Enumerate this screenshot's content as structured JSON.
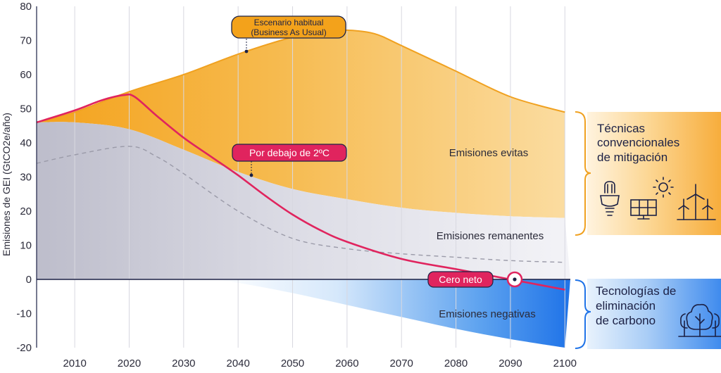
{
  "chart_data": {
    "type": "area",
    "ylabel": "Emisiones de GEI (GtCO2e/año)",
    "xlabel": "",
    "title": "",
    "xlim": [
      2003,
      2101
    ],
    "ylim": [
      -20,
      80
    ],
    "x_ticks": [
      2010,
      2020,
      2030,
      2040,
      2050,
      2060,
      2070,
      2080,
      2090,
      2100
    ],
    "y_ticks": [
      80,
      70,
      60,
      50,
      40,
      30,
      20,
      10,
      0,
      -10,
      -20
    ],
    "series": [
      {
        "key": "bau",
        "x": [
          2003,
          2010,
          2020,
          2030,
          2040,
          2050,
          2055,
          2060,
          2065,
          2070,
          2080,
          2090,
          2100
        ],
        "values": [
          46,
          49,
          55,
          60,
          66,
          71,
          72.5,
          73,
          72,
          68.5,
          61,
          53.5,
          49
        ]
      },
      {
        "key": "below2",
        "x": [
          2003,
          2010,
          2015,
          2019,
          2021,
          2025,
          2030,
          2035,
          2040,
          2045,
          2050,
          2055,
          2060,
          2070,
          2080,
          2090,
          2100
        ],
        "values": [
          46,
          49.5,
          52.5,
          54,
          53.5,
          48,
          41.5,
          36,
          30.5,
          24.5,
          19,
          14.5,
          11,
          6,
          3,
          0,
          -3
        ]
      },
      {
        "key": "residual",
        "x": [
          2003,
          2010,
          2020,
          2030,
          2040,
          2050,
          2060,
          2070,
          2080,
          2090,
          2100
        ],
        "values": [
          46,
          46,
          44,
          38,
          31.5,
          26.5,
          23.5,
          21,
          19.5,
          18.5,
          18
        ]
      },
      {
        "key": "dashed",
        "x": [
          2003,
          2010,
          2020,
          2025,
          2030,
          2040,
          2050,
          2060,
          2070,
          2080,
          2090,
          2100
        ],
        "values": [
          34,
          36.5,
          39,
          36,
          31,
          20,
          12,
          9,
          7.5,
          6.5,
          5.5,
          5
        ]
      },
      {
        "key": "negative",
        "x": [
          2035,
          2040,
          2050,
          2060,
          2070,
          2080,
          2090,
          2100
        ],
        "values": [
          0,
          -1,
          -4,
          -7.5,
          -11,
          -14.5,
          -17.5,
          -20
        ]
      }
    ],
    "annotations": {
      "bau_label": [
        "Escenario habitual",
        "(Business As Usual)"
      ],
      "below2_label": "Por debajo de 2ºC",
      "netzero_label": "Cero neto",
      "avoided": "Emisiones evitas",
      "remaining": "Emisiones remanentes",
      "negative": "Emisiones negativas"
    },
    "side_panels": {
      "mitigation": [
        "Técnicas",
        "convencionales",
        "de mitigación"
      ],
      "removal": [
        "Tecnologías de",
        "eliminación",
        "de carbono"
      ]
    },
    "colors": {
      "bau": "#f3a21b",
      "below2": "#e0245e",
      "grey_area": "#c9c9d6",
      "blue": "#1f73e8",
      "axis_text": "#2b2b3a",
      "icon": "#1c2145"
    },
    "icons": [
      "light-bulb-icon",
      "solar-panel-icon",
      "sun-icon",
      "wind-turbines-icon",
      "trees-icon"
    ]
  }
}
